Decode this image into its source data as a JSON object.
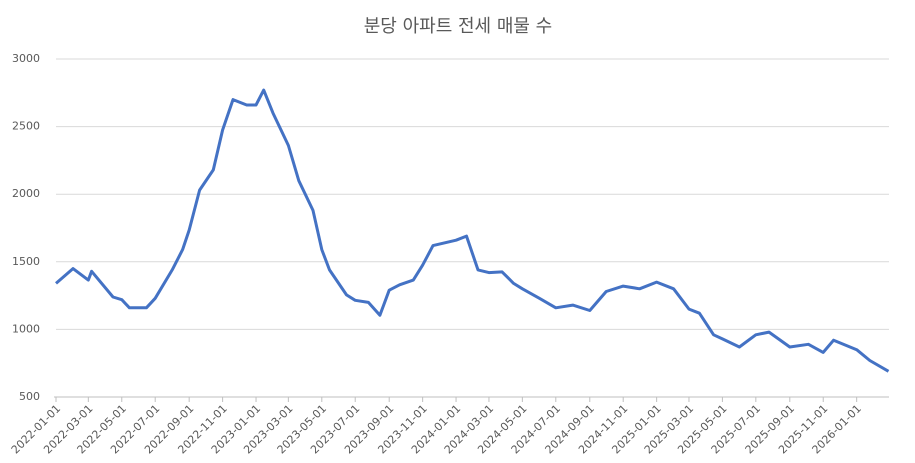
{
  "chart_data": {
    "type": "line",
    "title": "분당 아파트 전세 매물 수",
    "x": [
      "2022-01-01",
      "2022-02-01",
      "2022-03-01",
      "2022-03-07",
      "2022-04-15",
      "2022-05-01",
      "2022-05-15",
      "2022-06-15",
      "2022-07-01",
      "2022-08-01",
      "2022-08-20",
      "2022-09-01",
      "2022-09-20",
      "2022-10-15",
      "2022-11-01",
      "2022-11-20",
      "2022-12-15",
      "2023-01-01",
      "2023-01-15",
      "2023-02-01",
      "2023-03-01",
      "2023-03-20",
      "2023-04-15",
      "2023-05-01",
      "2023-05-15",
      "2023-06-15",
      "2023-07-01",
      "2023-07-25",
      "2023-08-15",
      "2023-09-01",
      "2023-09-20",
      "2023-10-15",
      "2023-11-01",
      "2023-11-20",
      "2024-01-01",
      "2024-01-20",
      "2024-02-10",
      "2024-03-01",
      "2024-03-25",
      "2024-04-15",
      "2024-05-01",
      "2024-06-01",
      "2024-07-01",
      "2024-08-01",
      "2024-09-01",
      "2024-10-01",
      "2024-11-01",
      "2024-12-01",
      "2025-01-01",
      "2025-02-01",
      "2025-03-01",
      "2025-03-20",
      "2025-04-15",
      "2025-05-01",
      "2025-06-01",
      "2025-07-01",
      "2025-07-25",
      "2025-09-01",
      "2025-10-05",
      "2025-11-01",
      "2025-11-20",
      "2026-01-01",
      "2026-01-25",
      "2026-02-28"
    ],
    "series": [
      {
        "name": "매물 수",
        "color": "#4472c4",
        "values": [
          1340,
          1450,
          1365,
          1430,
          1240,
          1220,
          1160,
          1160,
          1230,
          1440,
          1590,
          1735,
          2030,
          2180,
          2475,
          2700,
          2660,
          2660,
          2770,
          2600,
          2360,
          2100,
          1880,
          1590,
          1440,
          1255,
          1215,
          1200,
          1105,
          1290,
          1330,
          1365,
          1475,
          1620,
          1660,
          1690,
          1440,
          1420,
          1425,
          1340,
          1300,
          1230,
          1160,
          1180,
          1140,
          1280,
          1320,
          1300,
          1350,
          1300,
          1150,
          1120,
          960,
          930,
          870,
          960,
          980,
          870,
          890,
          830,
          920,
          850,
          770,
          690
        ]
      }
    ],
    "xlim": [
      "2022-01-01",
      "2026-03-01"
    ],
    "xticks": [
      "2022-01-01",
      "2022-03-01",
      "2022-05-01",
      "2022-07-01",
      "2022-09-01",
      "2022-11-01",
      "2023-01-01",
      "2023-03-01",
      "2023-05-01",
      "2023-07-01",
      "2023-09-01",
      "2023-11-01",
      "2024-01-01",
      "2024-03-01",
      "2024-05-01",
      "2024-07-01",
      "2024-09-01",
      "2024-11-01",
      "2025-01-01",
      "2025-03-01",
      "2025-05-01",
      "2025-07-01",
      "2025-09-01",
      "2025-11-01",
      "2026-01-01"
    ],
    "ylim": [
      500,
      3000
    ],
    "yticks": [
      500,
      1000,
      1500,
      2000,
      2500,
      3000
    ],
    "grid": true
  }
}
